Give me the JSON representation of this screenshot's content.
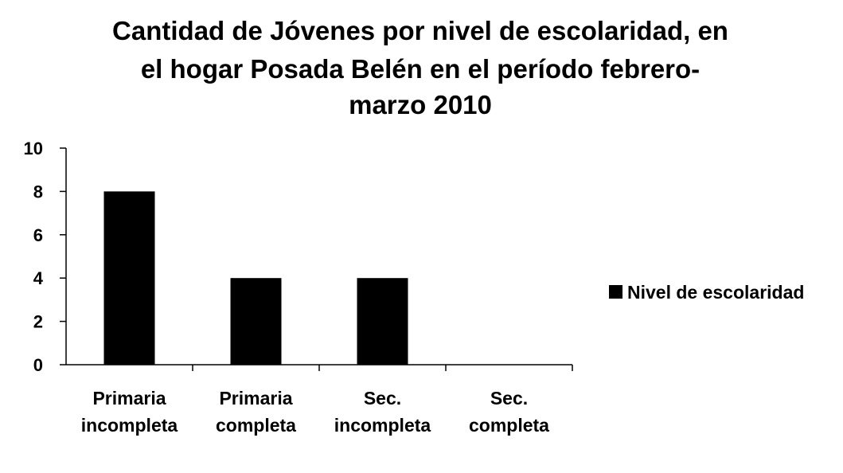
{
  "chart_data": {
    "type": "bar",
    "title_lines": [
      "Cantidad de Jóvenes por nivel de escolaridad, en",
      "el hogar Posada Belén en el período febrero-",
      "marzo 2010"
    ],
    "categories": [
      [
        "Primaria",
        "incompleta"
      ],
      [
        "Primaria",
        "completa"
      ],
      [
        "Sec.",
        "incompleta"
      ],
      [
        "Sec.",
        "completa"
      ]
    ],
    "series": [
      {
        "name": "Nivel de escolaridad",
        "values": [
          8,
          4,
          4,
          0
        ],
        "color": "#000000"
      }
    ],
    "ylim": [
      0,
      10
    ],
    "yticks": [
      "0",
      "2",
      "4",
      "6",
      "8",
      "10"
    ],
    "grid": false,
    "legend_position": "right"
  }
}
